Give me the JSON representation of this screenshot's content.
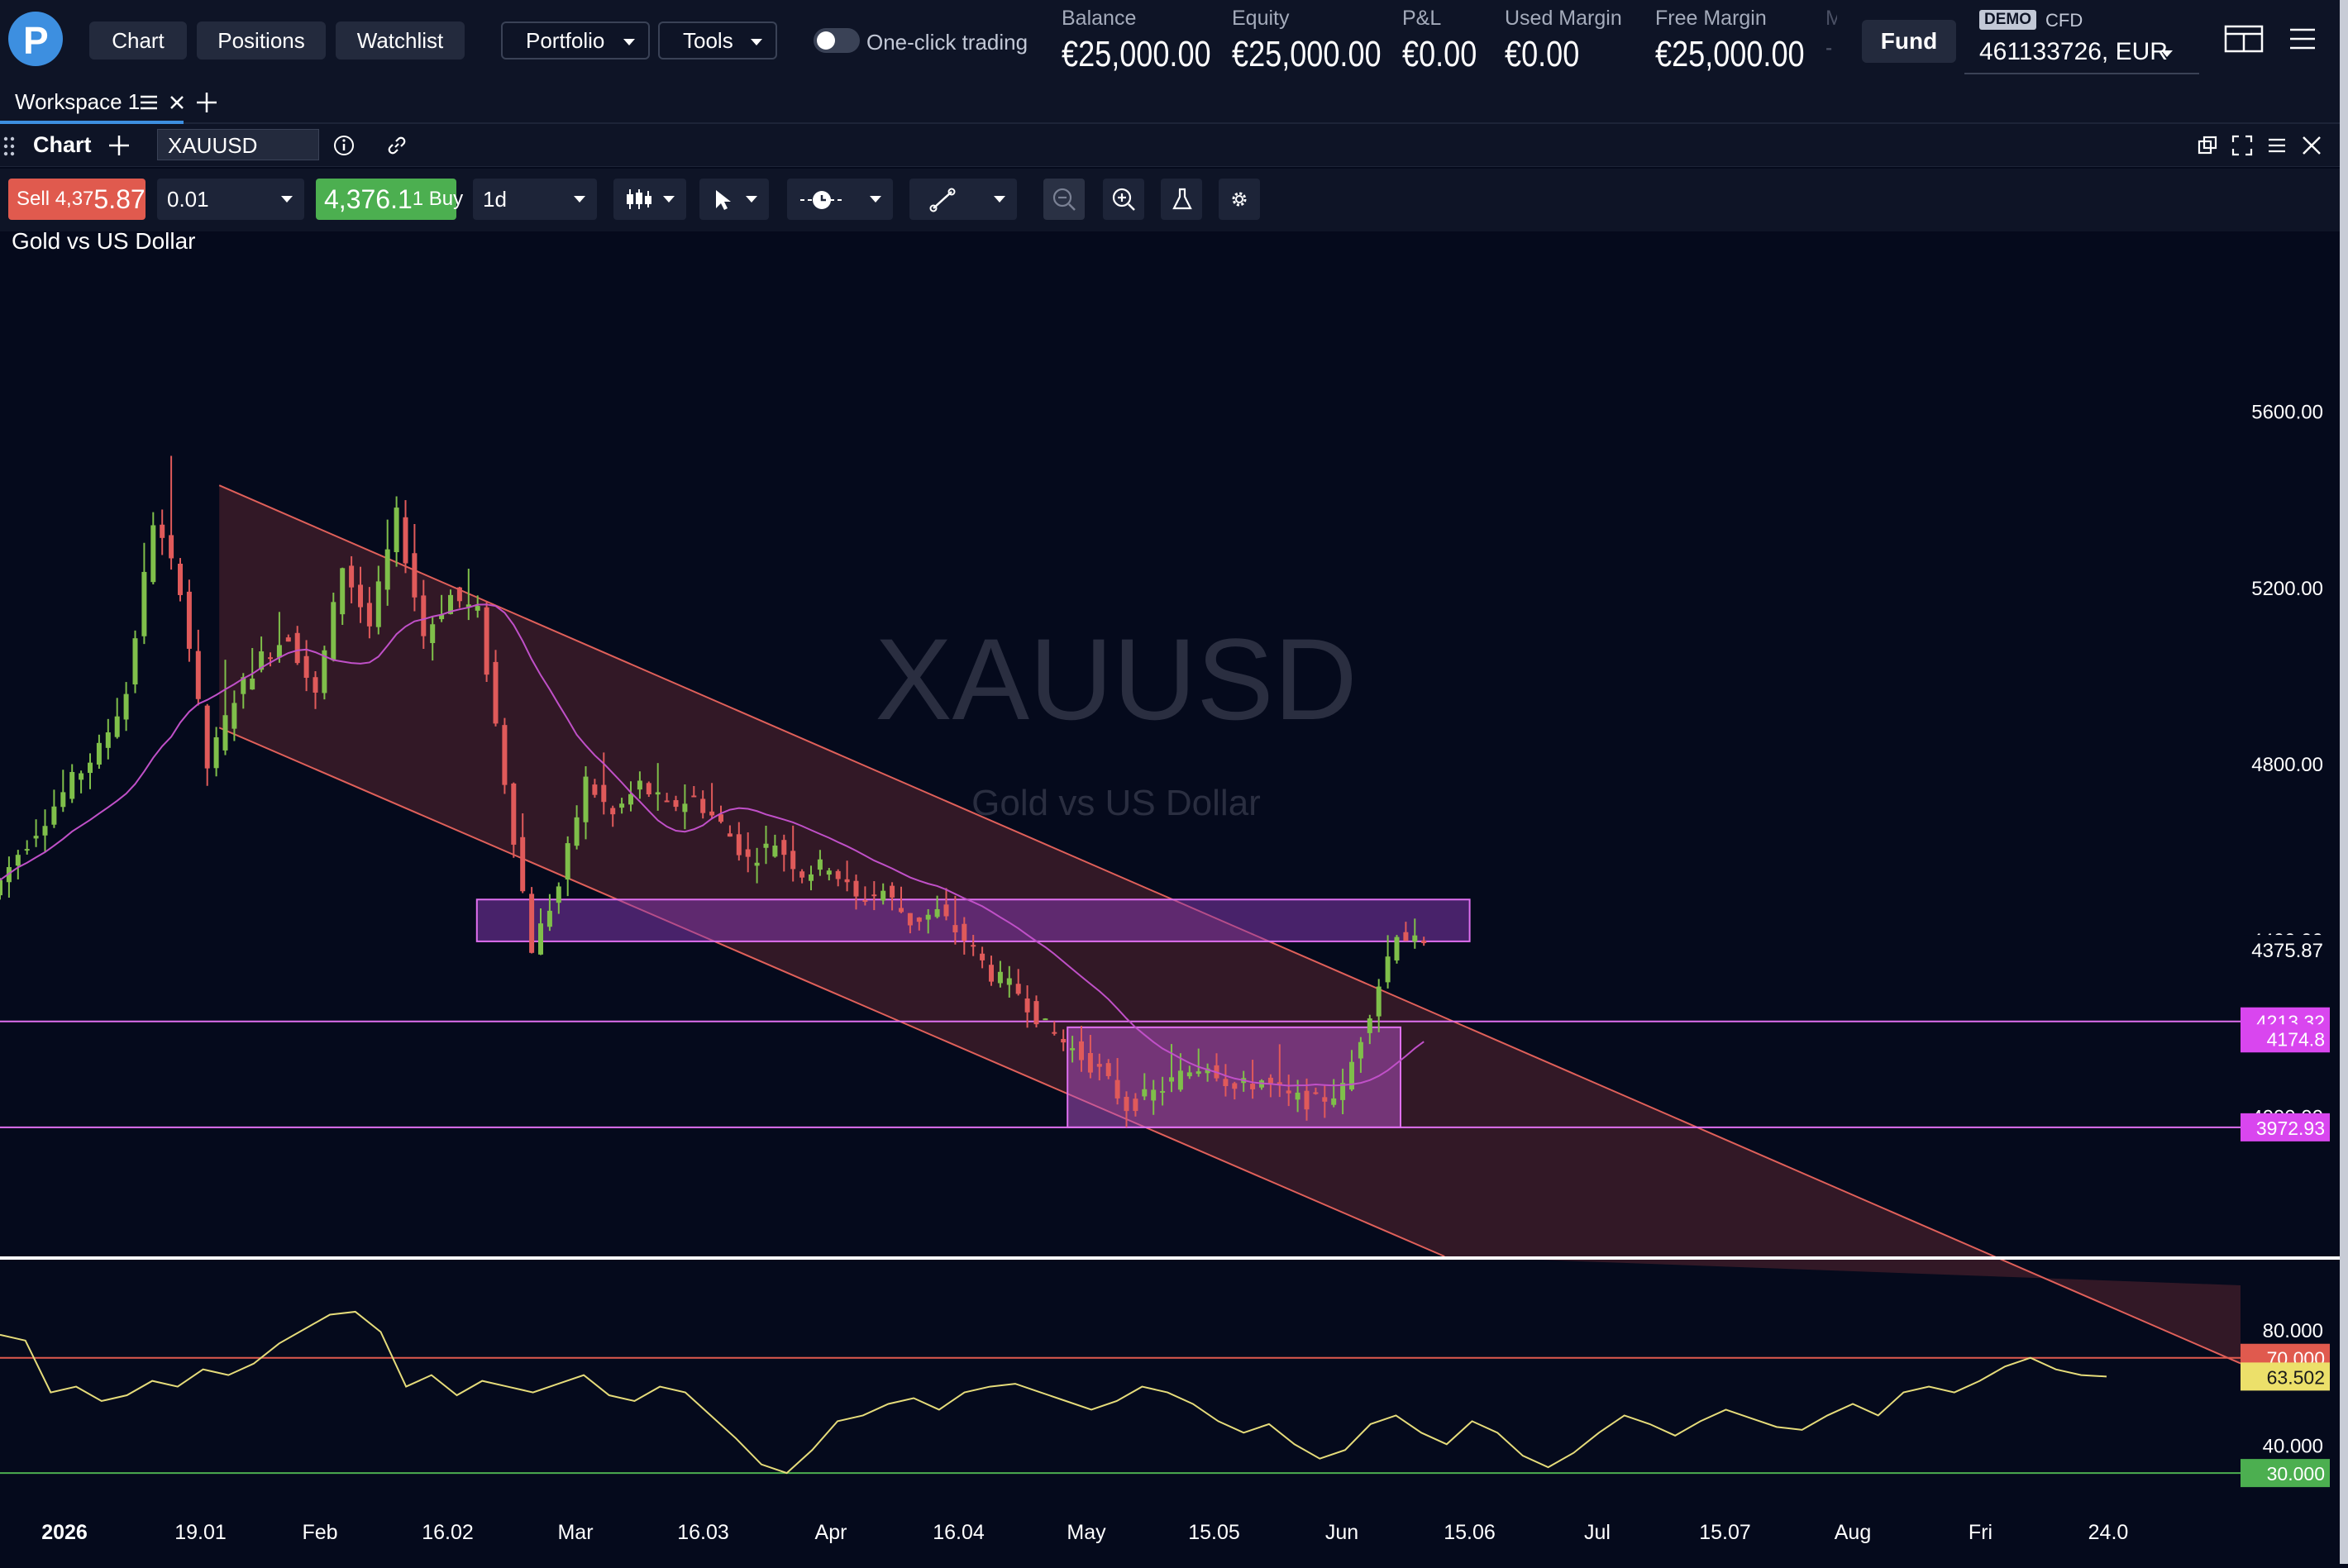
{
  "header": {
    "nav": [
      "Chart",
      "Positions",
      "Watchlist"
    ],
    "portfolio_label": "Portfolio",
    "tools_label": "Tools",
    "one_click_label": "One-click trading",
    "stats": [
      {
        "label": "Balance",
        "value": "€25,000.00"
      },
      {
        "label": "Equity",
        "value": "€25,000.00"
      },
      {
        "label": "P&L",
        "value": "€0.00"
      },
      {
        "label": "Used Margin",
        "value": "€0.00"
      },
      {
        "label": "Free Margin",
        "value": "€25,000.00"
      }
    ],
    "clipped_stat_label": "M",
    "clipped_stat_value": "-",
    "fund_label": "Fund",
    "account_badge": "DEMO",
    "account_type": "CFD",
    "account_number": "461133726, EUR"
  },
  "workspace": {
    "tab_label": "Workspace 1"
  },
  "chart_panel": {
    "title": "Chart",
    "symbol": "XAUUSD"
  },
  "toolbar": {
    "sell_prefix": "Sell 4,37",
    "sell_big": "5.87",
    "quantity": "0.01",
    "buy_main": "4,376.1",
    "buy_suffix": "1 Buy",
    "timeframe": "1d"
  },
  "chart": {
    "subtitle": "Gold vs US Dollar",
    "watermark_symbol": "XAUUSD",
    "watermark_name": "Gold vs US Dollar"
  },
  "chart_data": {
    "type": "candlestick",
    "symbol": "XAUUSD",
    "title": "Gold vs US Dollar",
    "price_axis": {
      "ticks": [
        "5600.00",
        "5200.00",
        "4800.00",
        "4400.00",
        "4000.00"
      ],
      "range": [
        3680,
        5800
      ]
    },
    "current_price": "4375.87",
    "price_labels": [
      {
        "value": "4213.32",
        "color": "#d946ef"
      },
      {
        "value": "4174.8",
        "color": "#d946ef"
      },
      {
        "value": "3972.93",
        "color": "#d946ef"
      }
    ],
    "horizontal_lines": [
      4213.32,
      3972.93
    ],
    "zones": [
      {
        "from": "2026-03-05",
        "to": "2026-08-10",
        "low": 4395,
        "high": 4490,
        "color": "#8b3ab8"
      },
      {
        "from": "2026-06-07",
        "to": "2026-07-30",
        "low": 3972.93,
        "high": 4200,
        "color": "#b552c8"
      }
    ],
    "channel": {
      "upper": [
        [
          "2026-01-23",
          5430
        ],
        [
          "2026-08-16",
          4160
        ]
      ],
      "lower": [
        [
          "2026-01-23",
          4880
        ],
        [
          "2026-08-06",
          3680
        ]
      ],
      "color": "#e0605a"
    },
    "time_axis": [
      "2026",
      "19.01",
      "Feb",
      "16.02",
      "Mar",
      "16.03",
      "Apr",
      "16.04",
      "May",
      "15.05",
      "Jun",
      "15.06",
      "Jul",
      "15.07",
      "Aug",
      "Fri",
      "24.0"
    ],
    "candles_close_path": [
      [
        4500,
        4630,
        4595
      ],
      [
        4595,
        4700,
        4675
      ],
      [
        4675,
        4800,
        4760
      ],
      [
        4760,
        4860,
        4830
      ],
      [
        4830,
        5000,
        4960
      ],
      [
        4960,
        5430,
        5350
      ],
      [
        5350,
        5600,
        5200
      ],
      [
        5200,
        5280,
        4790
      ],
      [
        4790,
        5100,
        4950
      ],
      [
        4950,
        5150,
        5040
      ],
      [
        5040,
        5200,
        5090
      ],
      [
        5090,
        5150,
        4950
      ],
      [
        4950,
        5280,
        5250
      ],
      [
        5250,
        5310,
        5110
      ],
      [
        5110,
        5420,
        5360
      ],
      [
        5360,
        5420,
        5090
      ],
      [
        5090,
        5210,
        5180
      ],
      [
        5180,
        5300,
        5140
      ],
      [
        5140,
        5180,
        4760
      ],
      [
        4760,
        4790,
        4380
      ],
      [
        4380,
        4560,
        4520
      ],
      [
        4520,
        4800,
        4760
      ],
      [
        4760,
        4830,
        4680
      ],
      [
        4680,
        4790,
        4750
      ],
      [
        4750,
        4810,
        4700
      ],
      [
        4700,
        4770,
        4720
      ],
      [
        4720,
        4790,
        4660
      ],
      [
        4660,
        4700,
        4580
      ],
      [
        4580,
        4650,
        4620
      ],
      [
        4620,
        4670,
        4550
      ],
      [
        4550,
        4600,
        4570
      ],
      [
        4570,
        4610,
        4490
      ],
      [
        4490,
        4530,
        4510
      ],
      [
        4510,
        4540,
        4440
      ],
      [
        4440,
        4480,
        4460
      ],
      [
        4460,
        4510,
        4400
      ],
      [
        4400,
        4420,
        4320
      ],
      [
        4320,
        4350,
        4280
      ],
      [
        4280,
        4300,
        4200
      ],
      [
        4200,
        4230,
        4150
      ],
      [
        4150,
        4210,
        4100
      ],
      [
        4100,
        4130,
        4020
      ],
      [
        4020,
        4060,
        4050
      ],
      [
        4050,
        4170,
        4090
      ],
      [
        4090,
        4190,
        4120
      ],
      [
        4120,
        4170,
        4060
      ],
      [
        4060,
        4110,
        4080
      ],
      [
        4080,
        4200,
        4040
      ],
      [
        4040,
        4080,
        4030
      ],
      [
        4030,
        4080,
        4060
      ],
      [
        4060,
        4250,
        4240
      ],
      [
        4240,
        4450,
        4420
      ],
      [
        4420,
        4460,
        4376
      ]
    ],
    "moving_average": {
      "color": "#c050c8"
    },
    "rsi": {
      "axis_ticks": [
        "80.000",
        "40.000"
      ],
      "levels": [
        {
          "value": 70.0,
          "label": "70.000",
          "color": "#e05a4e"
        },
        {
          "value": 30.0,
          "label": "30.000",
          "color": "#4caf50"
        }
      ],
      "current": "63.502",
      "current_color": "#ece06a",
      "range": [
        22,
        88
      ],
      "values": [
        78,
        76,
        58,
        60,
        55,
        57,
        62,
        60,
        66,
        64,
        68,
        75,
        80,
        85,
        86,
        79,
        60,
        64,
        57,
        62,
        60,
        58,
        61,
        64,
        57,
        55,
        60,
        58,
        50,
        42,
        33,
        30,
        38,
        48,
        50,
        54,
        56,
        52,
        58,
        60,
        61,
        58,
        55,
        52,
        55,
        60,
        58,
        54,
        48,
        44,
        47,
        40,
        35,
        38,
        47,
        50,
        44,
        40,
        48,
        44,
        36,
        32,
        37,
        44,
        50,
        47,
        43,
        48,
        52,
        49,
        46,
        45,
        50,
        54,
        50,
        58,
        60,
        58,
        62,
        67,
        70,
        66,
        64,
        63.5
      ]
    }
  }
}
